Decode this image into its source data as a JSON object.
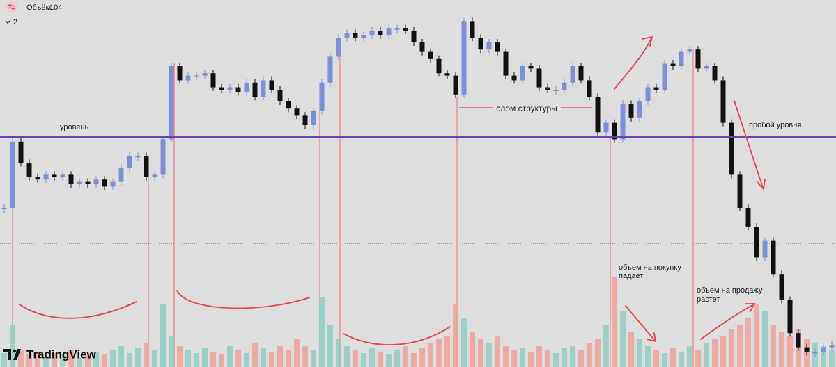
{
  "header": {
    "indicator": "Объём",
    "indicator_value": 104,
    "collapsed_count": 2
  },
  "chart": {
    "prices": [
      15,
      43,
      34,
      28,
      27,
      29,
      28,
      29,
      25,
      26,
      25,
      27,
      24,
      26,
      32,
      37,
      37,
      28,
      29,
      44,
      75,
      69,
      71,
      71,
      72,
      66,
      65,
      66,
      64,
      68,
      62,
      69,
      65,
      60,
      57,
      54,
      50,
      56,
      68,
      79,
      87,
      89,
      87,
      88,
      90,
      88,
      91,
      91,
      90,
      85,
      81,
      78,
      72,
      71,
      63,
      94,
      87,
      82,
      85,
      81,
      71,
      69,
      75,
      74,
      66,
      65,
      65,
      68,
      75,
      69,
      62,
      47,
      51,
      44,
      59,
      53,
      60,
      66,
      65,
      76,
      75,
      81,
      82,
      74,
      75,
      69,
      51,
      29,
      15,
      7,
      -6,
      1,
      -13,
      -24,
      -38,
      -44,
      -46,
      -46,
      -44,
      -43
    ],
    "volumes": [
      20,
      60,
      25,
      18,
      22,
      15,
      20,
      18,
      25,
      15,
      20,
      22,
      18,
      25,
      30,
      20,
      28,
      35,
      25,
      90,
      45,
      30,
      25,
      20,
      28,
      22,
      18,
      30,
      25,
      20,
      35,
      28,
      22,
      30,
      25,
      40,
      30,
      25,
      100,
      60,
      40,
      30,
      25,
      20,
      28,
      22,
      18,
      25,
      30,
      20,
      28,
      35,
      40,
      45,
      90,
      70,
      50,
      40,
      35,
      45,
      30,
      25,
      28,
      22,
      30,
      25,
      20,
      28,
      30,
      25,
      35,
      40,
      60,
      130,
      80,
      50,
      40,
      30,
      25,
      20,
      28,
      22,
      30,
      25,
      35,
      40,
      45,
      55,
      60,
      70,
      90,
      80,
      60,
      50,
      45,
      55,
      40,
      35,
      30,
      25
    ],
    "level": 45
  },
  "annotations": {
    "level": "уровень",
    "structure_break": "слом структуры",
    "breakout": "пробой уровня",
    "buy_volume": [
      "объем на покупку",
      "падает"
    ],
    "sell_volume": [
      "объем на продажу",
      "растет"
    ]
  },
  "logo": "TradingView"
}
